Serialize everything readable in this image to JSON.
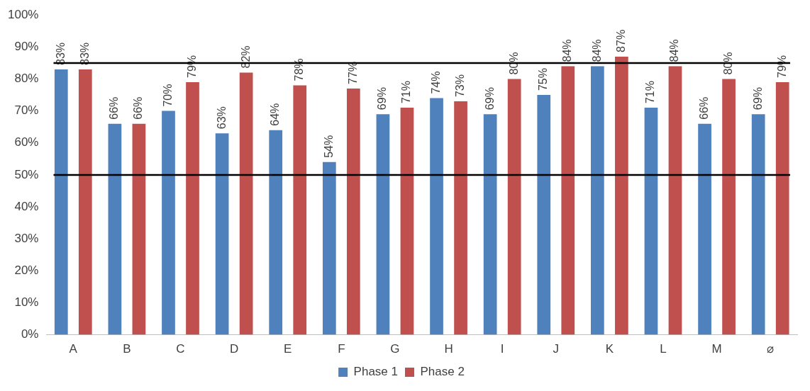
{
  "chart_data": {
    "type": "bar",
    "categories": [
      "A",
      "B",
      "C",
      "D",
      "E",
      "F",
      "G",
      "H",
      "I",
      "J",
      "K",
      "L",
      "M",
      "⌀"
    ],
    "series": [
      {
        "name": "Phase 1",
        "color": "#4f81bd",
        "values": [
          83,
          66,
          70,
          63,
          64,
          54,
          69,
          74,
          69,
          75,
          84,
          71,
          66,
          69
        ],
        "value_labels": [
          "83%",
          "66%",
          "70%",
          "63%",
          "64%",
          "54%",
          "69%",
          "74%",
          "69%",
          "75%",
          "84%",
          "71%",
          "66%",
          "69%"
        ]
      },
      {
        "name": "Phase 2",
        "color": "#c0504d",
        "values": [
          83,
          66,
          79,
          82,
          78,
          77,
          71,
          73,
          80,
          84,
          87,
          84,
          80,
          79
        ],
        "value_labels": [
          "83%",
          "66%",
          "79%",
          "82%",
          "78%",
          "77%",
          "71%",
          "73%",
          "80%",
          "84%",
          "87%",
          "84%",
          "80%",
          "79%"
        ]
      }
    ],
    "ylim": [
      0,
      100
    ],
    "yticks": [
      {
        "value": 0,
        "label": "0%"
      },
      {
        "value": 10,
        "label": "10%"
      },
      {
        "value": 20,
        "label": "20%"
      },
      {
        "value": 30,
        "label": "30%"
      },
      {
        "value": 40,
        "label": "40%"
      },
      {
        "value": 50,
        "label": "50%"
      },
      {
        "value": 60,
        "label": "60%"
      },
      {
        "value": 70,
        "label": "70%"
      },
      {
        "value": 80,
        "label": "80%"
      },
      {
        "value": 90,
        "label": "90%"
      },
      {
        "value": 100,
        "label": "100%"
      }
    ],
    "ref_lines": [
      {
        "axis": "y",
        "value": 85,
        "color": "#000000"
      },
      {
        "axis": "y",
        "value": 50,
        "color": "#000000"
      }
    ],
    "grid": false,
    "legend": "bottom"
  }
}
